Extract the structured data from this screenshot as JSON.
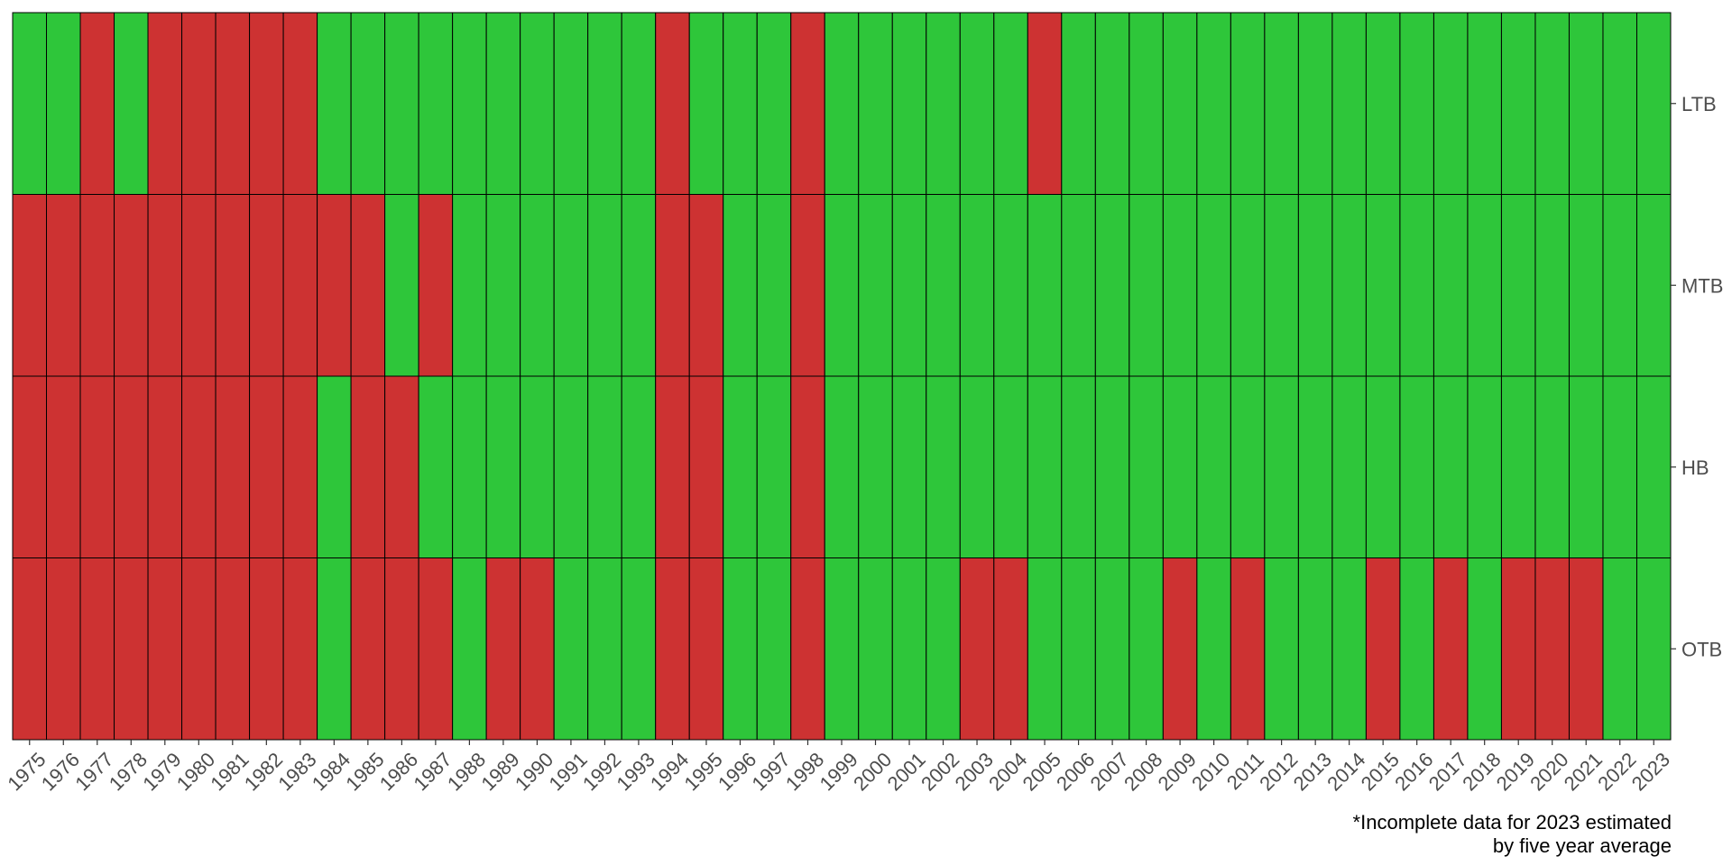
{
  "chart_data": {
    "type": "heatmap",
    "title": "",
    "xlabel": "",
    "ylabel": "",
    "x": [
      1975,
      1976,
      1977,
      1978,
      1979,
      1980,
      1981,
      1982,
      1983,
      1984,
      1985,
      1986,
      1987,
      1988,
      1989,
      1990,
      1991,
      1992,
      1993,
      1994,
      1995,
      1996,
      1997,
      1998,
      1999,
      2000,
      2001,
      2002,
      2003,
      2004,
      2005,
      2006,
      2007,
      2008,
      2009,
      2010,
      2011,
      2012,
      2013,
      2014,
      2015,
      2016,
      2017,
      2018,
      2019,
      2020,
      2021,
      2022,
      2023
    ],
    "rows": [
      "LTB",
      "MTB",
      "HB",
      "OTB"
    ],
    "value_legend": {
      "1": "green",
      "0": "red"
    },
    "values": {
      "LTB": [
        1,
        1,
        0,
        1,
        0,
        0,
        0,
        0,
        0,
        1,
        1,
        1,
        1,
        1,
        1,
        1,
        1,
        1,
        1,
        0,
        1,
        1,
        1,
        0,
        1,
        1,
        1,
        1,
        1,
        1,
        0,
        1,
        1,
        1,
        1,
        1,
        1,
        1,
        1,
        1,
        1,
        1,
        1,
        1,
        1,
        1,
        1,
        1,
        1
      ],
      "MTB": [
        0,
        0,
        0,
        0,
        0,
        0,
        0,
        0,
        0,
        0,
        0,
        1,
        0,
        1,
        1,
        1,
        1,
        1,
        1,
        0,
        0,
        1,
        1,
        0,
        1,
        1,
        1,
        1,
        1,
        1,
        1,
        1,
        1,
        1,
        1,
        1,
        1,
        1,
        1,
        1,
        1,
        1,
        1,
        1,
        1,
        1,
        1,
        1,
        1
      ],
      "HB": [
        0,
        0,
        0,
        0,
        0,
        0,
        0,
        0,
        0,
        1,
        0,
        0,
        1,
        1,
        1,
        1,
        1,
        1,
        1,
        0,
        0,
        1,
        1,
        0,
        1,
        1,
        1,
        1,
        1,
        1,
        1,
        1,
        1,
        1,
        1,
        1,
        1,
        1,
        1,
        1,
        1,
        1,
        1,
        1,
        1,
        1,
        1,
        1,
        1
      ],
      "OTB": [
        0,
        0,
        0,
        0,
        0,
        0,
        0,
        0,
        0,
        1,
        0,
        0,
        0,
        1,
        0,
        0,
        1,
        1,
        1,
        0,
        0,
        1,
        1,
        0,
        1,
        1,
        1,
        1,
        0,
        0,
        1,
        1,
        1,
        1,
        0,
        1,
        0,
        1,
        1,
        1,
        0,
        1,
        0,
        1,
        0,
        0,
        0,
        1,
        1
      ]
    },
    "colors": {
      "green": "#2ec63a",
      "red": "#cd3232",
      "border": "#000000"
    },
    "legend": "none",
    "grid": false
  },
  "caption": {
    "line1": "*Incomplete data for 2023 estimated",
    "line2": "by five year average"
  }
}
